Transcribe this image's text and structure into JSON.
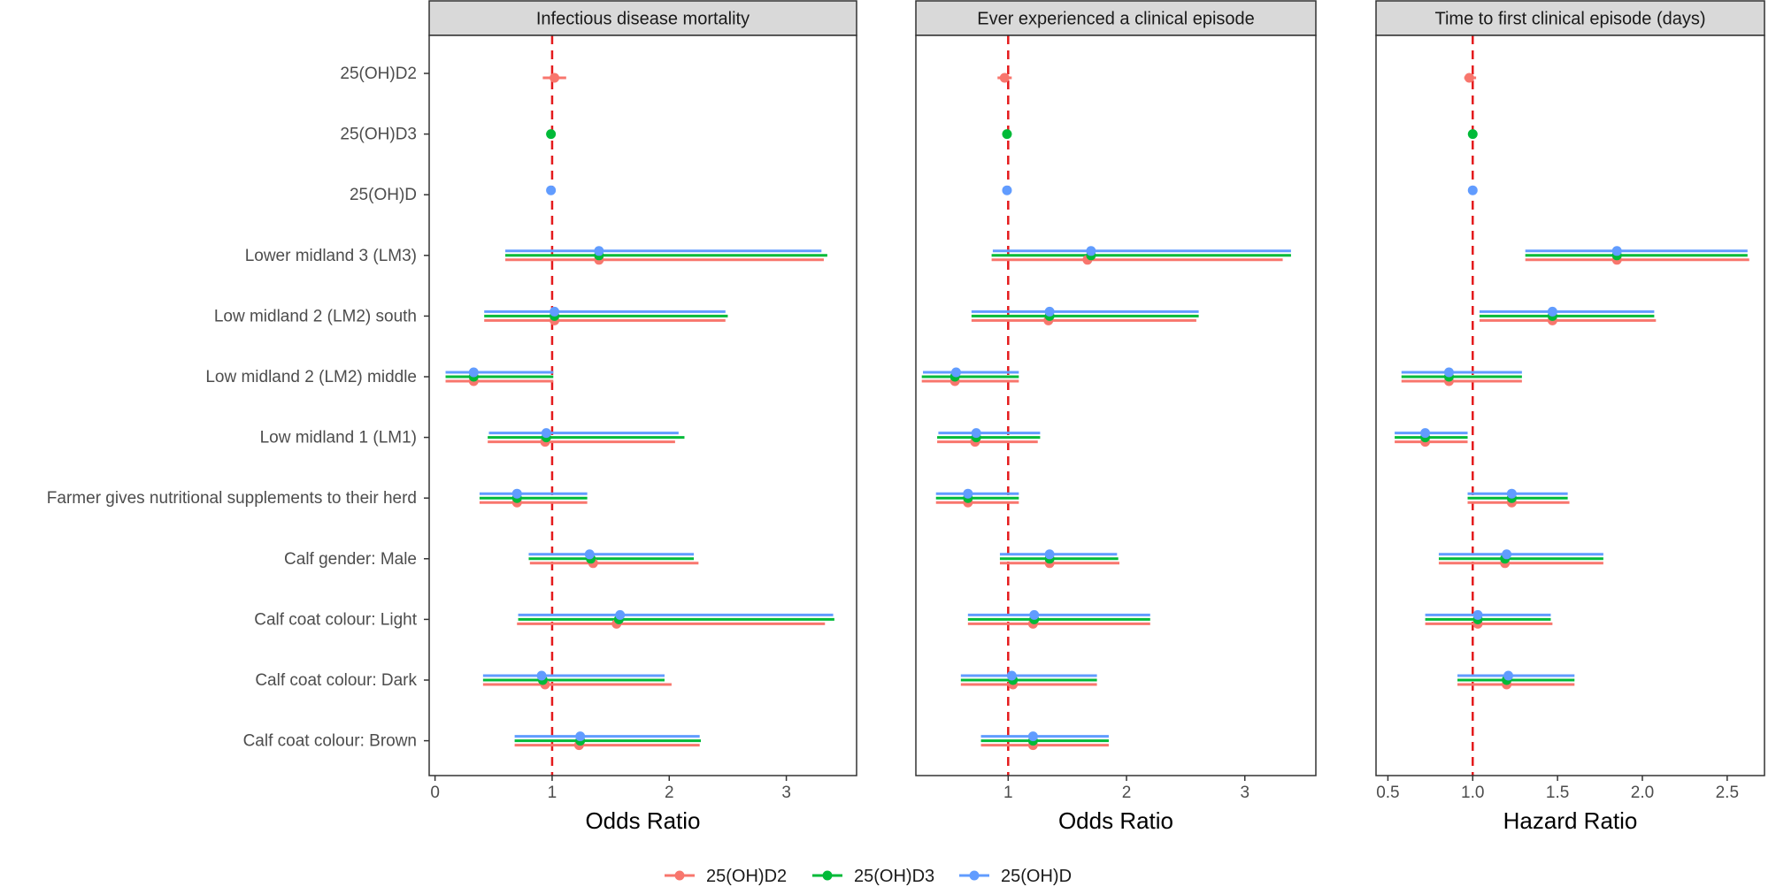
{
  "chart_data": {
    "type": "forest",
    "rows": [
      "25(OH)D2",
      "25(OH)D3",
      "25(OH)D",
      "Lower midland 3 (LM3)",
      "Low midland 2 (LM2) south",
      "Low midland 2 (LM2) middle",
      "Low midland 1 (LM1)",
      "Farmer gives nutritional supplements to their herd",
      "Calf gender: Male",
      "Calf coat colour: Light",
      "Calf coat colour: Dark",
      "Calf coat colour: Brown"
    ],
    "legend": [
      {
        "name": "25(OH)D2",
        "color": "#f8766d"
      },
      {
        "name": "25(OH)D3",
        "color": "#00ba38"
      },
      {
        "name": "25(OH)D",
        "color": "#619cff"
      }
    ],
    "reference_line": {
      "value": 1,
      "color": "#e41a1c"
    },
    "panels": [
      {
        "title": "Infectious disease mortality",
        "xlabel": "Odds Ratio",
        "xlim": [
          -0.05,
          3.6
        ],
        "ticks": [
          0,
          1,
          2,
          3
        ],
        "tick_labels": [
          "0",
          "1",
          "2",
          "3"
        ],
        "estimates": [
          {
            "row": 0,
            "series": "25(OH)D2",
            "est": 1.02,
            "lo": 0.92,
            "hi": 1.12
          },
          {
            "row": 1,
            "series": "25(OH)D3",
            "est": 0.99,
            "lo": 0.98,
            "hi": 1.0
          },
          {
            "row": 2,
            "series": "25(OH)D",
            "est": 0.99,
            "lo": 0.98,
            "hi": 1.0
          },
          {
            "row": 3,
            "series": "25(OH)D2",
            "est": 1.4,
            "lo": 0.6,
            "hi": 3.32
          },
          {
            "row": 3,
            "series": "25(OH)D3",
            "est": 1.4,
            "lo": 0.6,
            "hi": 3.35
          },
          {
            "row": 3,
            "series": "25(OH)D",
            "est": 1.4,
            "lo": 0.6,
            "hi": 3.3
          },
          {
            "row": 4,
            "series": "25(OH)D2",
            "est": 1.02,
            "lo": 0.42,
            "hi": 2.48
          },
          {
            "row": 4,
            "series": "25(OH)D3",
            "est": 1.02,
            "lo": 0.42,
            "hi": 2.5
          },
          {
            "row": 4,
            "series": "25(OH)D",
            "est": 1.02,
            "lo": 0.42,
            "hi": 2.48
          },
          {
            "row": 5,
            "series": "25(OH)D2",
            "est": 0.33,
            "lo": 0.09,
            "hi": 1.01
          },
          {
            "row": 5,
            "series": "25(OH)D3",
            "est": 0.33,
            "lo": 0.09,
            "hi": 1.01
          },
          {
            "row": 5,
            "series": "25(OH)D",
            "est": 0.33,
            "lo": 0.09,
            "hi": 1.01
          },
          {
            "row": 6,
            "series": "25(OH)D2",
            "est": 0.94,
            "lo": 0.45,
            "hi": 2.05
          },
          {
            "row": 6,
            "series": "25(OH)D3",
            "est": 0.95,
            "lo": 0.45,
            "hi": 2.13
          },
          {
            "row": 6,
            "series": "25(OH)D",
            "est": 0.95,
            "lo": 0.46,
            "hi": 2.08
          },
          {
            "row": 7,
            "series": "25(OH)D2",
            "est": 0.7,
            "lo": 0.38,
            "hi": 1.3
          },
          {
            "row": 7,
            "series": "25(OH)D3",
            "est": 0.7,
            "lo": 0.38,
            "hi": 1.3
          },
          {
            "row": 7,
            "series": "25(OH)D",
            "est": 0.7,
            "lo": 0.38,
            "hi": 1.3
          },
          {
            "row": 8,
            "series": "25(OH)D2",
            "est": 1.35,
            "lo": 0.81,
            "hi": 2.25
          },
          {
            "row": 8,
            "series": "25(OH)D3",
            "est": 1.33,
            "lo": 0.8,
            "hi": 2.21
          },
          {
            "row": 8,
            "series": "25(OH)D",
            "est": 1.32,
            "lo": 0.8,
            "hi": 2.21
          },
          {
            "row": 9,
            "series": "25(OH)D2",
            "est": 1.55,
            "lo": 0.7,
            "hi": 3.33
          },
          {
            "row": 9,
            "series": "25(OH)D3",
            "est": 1.57,
            "lo": 0.71,
            "hi": 3.41
          },
          {
            "row": 9,
            "series": "25(OH)D",
            "est": 1.58,
            "lo": 0.71,
            "hi": 3.4
          },
          {
            "row": 10,
            "series": "25(OH)D2",
            "est": 0.94,
            "lo": 0.41,
            "hi": 2.02
          },
          {
            "row": 10,
            "series": "25(OH)D3",
            "est": 0.92,
            "lo": 0.41,
            "hi": 1.96
          },
          {
            "row": 10,
            "series": "25(OH)D",
            "est": 0.91,
            "lo": 0.41,
            "hi": 1.96
          },
          {
            "row": 11,
            "series": "25(OH)D2",
            "est": 1.23,
            "lo": 0.68,
            "hi": 2.26
          },
          {
            "row": 11,
            "series": "25(OH)D3",
            "est": 1.24,
            "lo": 0.68,
            "hi": 2.27
          },
          {
            "row": 11,
            "series": "25(OH)D",
            "est": 1.24,
            "lo": 0.68,
            "hi": 2.26
          }
        ]
      },
      {
        "title": "Ever experienced a clinical episode",
        "xlabel": "Odds Ratio",
        "xlim": [
          0.22,
          3.6
        ],
        "ticks": [
          1,
          2,
          3
        ],
        "tick_labels": [
          "1",
          "2",
          "3"
        ],
        "estimates": [
          {
            "row": 0,
            "series": "25(OH)D2",
            "est": 0.97,
            "lo": 0.91,
            "hi": 1.03
          },
          {
            "row": 1,
            "series": "25(OH)D3",
            "est": 0.99,
            "lo": 0.98,
            "hi": 1.0
          },
          {
            "row": 2,
            "series": "25(OH)D",
            "est": 0.99,
            "lo": 0.98,
            "hi": 1.0
          },
          {
            "row": 3,
            "series": "25(OH)D2",
            "est": 1.67,
            "lo": 0.86,
            "hi": 3.32
          },
          {
            "row": 3,
            "series": "25(OH)D3",
            "est": 1.7,
            "lo": 0.86,
            "hi": 3.39
          },
          {
            "row": 3,
            "series": "25(OH)D",
            "est": 1.7,
            "lo": 0.87,
            "hi": 3.39
          },
          {
            "row": 4,
            "series": "25(OH)D2",
            "est": 1.34,
            "lo": 0.69,
            "hi": 2.59
          },
          {
            "row": 4,
            "series": "25(OH)D3",
            "est": 1.35,
            "lo": 0.69,
            "hi": 2.61
          },
          {
            "row": 4,
            "series": "25(OH)D",
            "est": 1.35,
            "lo": 0.69,
            "hi": 2.61
          },
          {
            "row": 5,
            "series": "25(OH)D2",
            "est": 0.55,
            "lo": 0.27,
            "hi": 1.09
          },
          {
            "row": 5,
            "series": "25(OH)D3",
            "est": 0.55,
            "lo": 0.27,
            "hi": 1.09
          },
          {
            "row": 5,
            "series": "25(OH)D",
            "est": 0.56,
            "lo": 0.28,
            "hi": 1.09
          },
          {
            "row": 6,
            "series": "25(OH)D2",
            "est": 0.72,
            "lo": 0.4,
            "hi": 1.25
          },
          {
            "row": 6,
            "series": "25(OH)D3",
            "est": 0.73,
            "lo": 0.4,
            "hi": 1.27
          },
          {
            "row": 6,
            "series": "25(OH)D",
            "est": 0.73,
            "lo": 0.41,
            "hi": 1.27
          },
          {
            "row": 7,
            "series": "25(OH)D2",
            "est": 0.66,
            "lo": 0.39,
            "hi": 1.09
          },
          {
            "row": 7,
            "series": "25(OH)D3",
            "est": 0.66,
            "lo": 0.39,
            "hi": 1.09
          },
          {
            "row": 7,
            "series": "25(OH)D",
            "est": 0.66,
            "lo": 0.39,
            "hi": 1.09
          },
          {
            "row": 8,
            "series": "25(OH)D2",
            "est": 1.35,
            "lo": 0.93,
            "hi": 1.94
          },
          {
            "row": 8,
            "series": "25(OH)D3",
            "est": 1.35,
            "lo": 0.93,
            "hi": 1.93
          },
          {
            "row": 8,
            "series": "25(OH)D",
            "est": 1.35,
            "lo": 0.93,
            "hi": 1.92
          },
          {
            "row": 9,
            "series": "25(OH)D2",
            "est": 1.21,
            "lo": 0.66,
            "hi": 2.2
          },
          {
            "row": 9,
            "series": "25(OH)D3",
            "est": 1.22,
            "lo": 0.66,
            "hi": 2.2
          },
          {
            "row": 9,
            "series": "25(OH)D",
            "est": 1.22,
            "lo": 0.66,
            "hi": 2.2
          },
          {
            "row": 10,
            "series": "25(OH)D2",
            "est": 1.04,
            "lo": 0.6,
            "hi": 1.75
          },
          {
            "row": 10,
            "series": "25(OH)D3",
            "est": 1.04,
            "lo": 0.6,
            "hi": 1.75
          },
          {
            "row": 10,
            "series": "25(OH)D",
            "est": 1.03,
            "lo": 0.6,
            "hi": 1.75
          },
          {
            "row": 11,
            "series": "25(OH)D2",
            "est": 1.21,
            "lo": 0.77,
            "hi": 1.85
          },
          {
            "row": 11,
            "series": "25(OH)D3",
            "est": 1.21,
            "lo": 0.77,
            "hi": 1.85
          },
          {
            "row": 11,
            "series": "25(OH)D",
            "est": 1.21,
            "lo": 0.77,
            "hi": 1.85
          }
        ]
      },
      {
        "title": "Time to first clinical episode (days)",
        "xlabel": "Hazard Ratio",
        "xlim": [
          0.43,
          2.72
        ],
        "ticks": [
          0.5,
          1.0,
          1.5,
          2.0,
          2.5
        ],
        "tick_labels": [
          "0.5",
          "1.0",
          "1.5",
          "2.0",
          "2.5"
        ],
        "estimates": [
          {
            "row": 0,
            "series": "25(OH)D2",
            "est": 0.98,
            "lo": 0.95,
            "hi": 1.02
          },
          {
            "row": 1,
            "series": "25(OH)D3",
            "est": 1.0,
            "lo": 0.99,
            "hi": 1.01
          },
          {
            "row": 2,
            "series": "25(OH)D",
            "est": 1.0,
            "lo": 0.99,
            "hi": 1.01
          },
          {
            "row": 3,
            "series": "25(OH)D2",
            "est": 1.85,
            "lo": 1.31,
            "hi": 2.63
          },
          {
            "row": 3,
            "series": "25(OH)D3",
            "est": 1.85,
            "lo": 1.31,
            "hi": 2.62
          },
          {
            "row": 3,
            "series": "25(OH)D",
            "est": 1.85,
            "lo": 1.31,
            "hi": 2.62
          },
          {
            "row": 4,
            "series": "25(OH)D2",
            "est": 1.47,
            "lo": 1.04,
            "hi": 2.08
          },
          {
            "row": 4,
            "series": "25(OH)D3",
            "est": 1.47,
            "lo": 1.04,
            "hi": 2.07
          },
          {
            "row": 4,
            "series": "25(OH)D",
            "est": 1.47,
            "lo": 1.04,
            "hi": 2.07
          },
          {
            "row": 5,
            "series": "25(OH)D2",
            "est": 0.86,
            "lo": 0.58,
            "hi": 1.29
          },
          {
            "row": 5,
            "series": "25(OH)D3",
            "est": 0.86,
            "lo": 0.58,
            "hi": 1.29
          },
          {
            "row": 5,
            "series": "25(OH)D",
            "est": 0.86,
            "lo": 0.58,
            "hi": 1.29
          },
          {
            "row": 6,
            "series": "25(OH)D2",
            "est": 0.72,
            "lo": 0.54,
            "hi": 0.97
          },
          {
            "row": 6,
            "series": "25(OH)D3",
            "est": 0.72,
            "lo": 0.54,
            "hi": 0.97
          },
          {
            "row": 6,
            "series": "25(OH)D",
            "est": 0.72,
            "lo": 0.54,
            "hi": 0.97
          },
          {
            "row": 7,
            "series": "25(OH)D2",
            "est": 1.23,
            "lo": 0.97,
            "hi": 1.57
          },
          {
            "row": 7,
            "series": "25(OH)D3",
            "est": 1.23,
            "lo": 0.97,
            "hi": 1.56
          },
          {
            "row": 7,
            "series": "25(OH)D",
            "est": 1.23,
            "lo": 0.97,
            "hi": 1.56
          },
          {
            "row": 8,
            "series": "25(OH)D2",
            "est": 1.19,
            "lo": 0.8,
            "hi": 1.77
          },
          {
            "row": 8,
            "series": "25(OH)D3",
            "est": 1.19,
            "lo": 0.8,
            "hi": 1.77
          },
          {
            "row": 8,
            "series": "25(OH)D",
            "est": 1.2,
            "lo": 0.8,
            "hi": 1.77
          },
          {
            "row": 9,
            "series": "25(OH)D2",
            "est": 1.03,
            "lo": 0.72,
            "hi": 1.47
          },
          {
            "row": 9,
            "series": "25(OH)D3",
            "est": 1.03,
            "lo": 0.72,
            "hi": 1.46
          },
          {
            "row": 9,
            "series": "25(OH)D",
            "est": 1.03,
            "lo": 0.72,
            "hi": 1.46
          },
          {
            "row": 10,
            "series": "25(OH)D2",
            "est": 1.2,
            "lo": 0.91,
            "hi": 1.6
          },
          {
            "row": 10,
            "series": "25(OH)D3",
            "est": 1.2,
            "lo": 0.91,
            "hi": 1.6
          },
          {
            "row": 10,
            "series": "25(OH)D",
            "est": 1.21,
            "lo": 0.91,
            "hi": 1.6
          }
        ]
      }
    ]
  }
}
